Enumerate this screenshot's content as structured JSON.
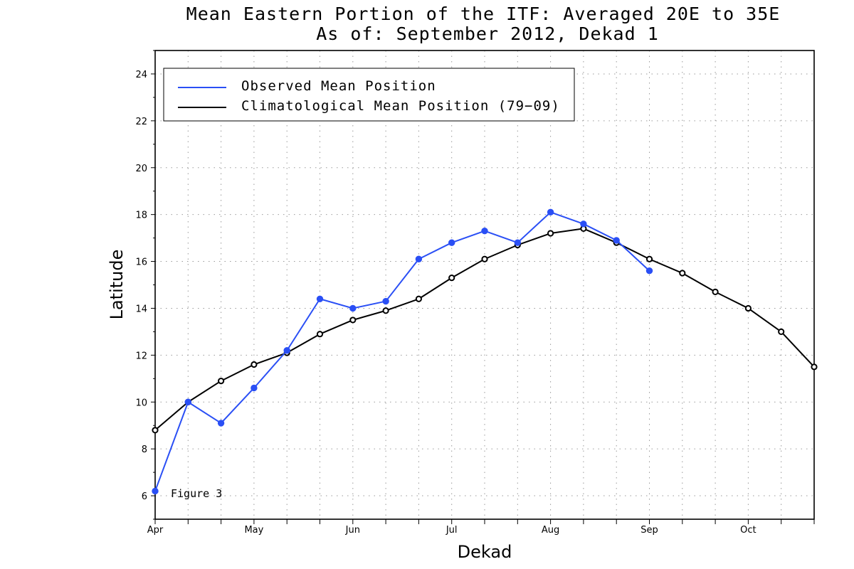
{
  "chart_data": {
    "type": "line",
    "title": "Mean Eastern Portion of the ITF: Averaged 20E to 35E",
    "subtitle": "As of: September 2012, Dekad 1",
    "xlabel": "Dekad",
    "ylabel": "Latitude",
    "annotation": "Figure 3",
    "ylim": [
      5,
      25
    ],
    "yticks": [
      6,
      8,
      10,
      12,
      14,
      16,
      18,
      20,
      22,
      24
    ],
    "x_count": 21,
    "month_ticks": [
      {
        "label": "Apr",
        "index": 0
      },
      {
        "label": "May",
        "index": 3
      },
      {
        "label": "Jun",
        "index": 6
      },
      {
        "label": "Jul",
        "index": 9
      },
      {
        "label": "Aug",
        "index": 12
      },
      {
        "label": "Sep",
        "index": 15
      },
      {
        "label": "Oct",
        "index": 18
      }
    ],
    "grid": true,
    "legend_position": "top-left",
    "series": [
      {
        "name": "Observed Mean Position",
        "color": "#2a4ff5",
        "marker": "filled-circle",
        "values": [
          6.2,
          10.0,
          9.1,
          10.6,
          12.2,
          14.4,
          14.0,
          14.3,
          16.1,
          16.8,
          17.3,
          16.8,
          18.1,
          17.6,
          16.9,
          15.6
        ]
      },
      {
        "name": "Climatological Mean Position (79−09)",
        "color": "#000000",
        "marker": "open-circle",
        "values": [
          8.8,
          10.0,
          10.9,
          11.6,
          12.1,
          12.9,
          13.5,
          13.9,
          14.4,
          15.3,
          16.1,
          16.7,
          17.2,
          17.4,
          16.8,
          16.1,
          15.5,
          14.7,
          14.0,
          13.0,
          11.5
        ]
      }
    ]
  }
}
